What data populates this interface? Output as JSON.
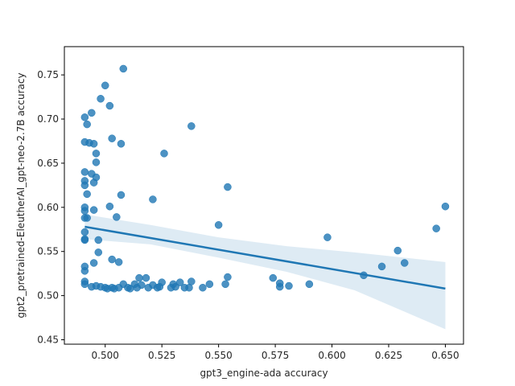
{
  "chart_data": {
    "type": "scatter",
    "xlabel": "gpt3_engine-ada accuracy",
    "ylabel": "gpt2_pretrained-EleutherAI_gpt-neo-2.7B accuracy",
    "xlim": [
      0.482,
      0.658
    ],
    "ylim": [
      0.445,
      0.782
    ],
    "xticks": [
      "0.500",
      "0.525",
      "0.550",
      "0.575",
      "0.600",
      "0.625",
      "0.650"
    ],
    "yticks": [
      "0.45",
      "0.50",
      "0.55",
      "0.60",
      "0.65",
      "0.70",
      "0.75"
    ],
    "grid": false,
    "point_color": "#1f77b4",
    "regression_line": {
      "x": [
        0.491,
        0.65
      ],
      "y": [
        0.578,
        0.508
      ]
    },
    "confidence_band": {
      "x": [
        0.491,
        0.52,
        0.55,
        0.58,
        0.61,
        0.65
      ],
      "upper": [
        0.592,
        0.58,
        0.566,
        0.556,
        0.549,
        0.538
      ],
      "lower": [
        0.564,
        0.558,
        0.543,
        0.527,
        0.506,
        0.462
      ]
    },
    "points": [
      {
        "x": 0.508,
        "y": 0.757
      },
      {
        "x": 0.5,
        "y": 0.738
      },
      {
        "x": 0.498,
        "y": 0.723
      },
      {
        "x": 0.502,
        "y": 0.715
      },
      {
        "x": 0.494,
        "y": 0.707
      },
      {
        "x": 0.491,
        "y": 0.702
      },
      {
        "x": 0.492,
        "y": 0.694
      },
      {
        "x": 0.538,
        "y": 0.692
      },
      {
        "x": 0.503,
        "y": 0.678
      },
      {
        "x": 0.491,
        "y": 0.674
      },
      {
        "x": 0.493,
        "y": 0.673
      },
      {
        "x": 0.495,
        "y": 0.672
      },
      {
        "x": 0.507,
        "y": 0.672
      },
      {
        "x": 0.526,
        "y": 0.661
      },
      {
        "x": 0.496,
        "y": 0.661
      },
      {
        "x": 0.496,
        "y": 0.651
      },
      {
        "x": 0.491,
        "y": 0.64
      },
      {
        "x": 0.494,
        "y": 0.638
      },
      {
        "x": 0.496,
        "y": 0.634
      },
      {
        "x": 0.491,
        "y": 0.63
      },
      {
        "x": 0.495,
        "y": 0.628
      },
      {
        "x": 0.491,
        "y": 0.625
      },
      {
        "x": 0.554,
        "y": 0.623
      },
      {
        "x": 0.492,
        "y": 0.615
      },
      {
        "x": 0.507,
        "y": 0.614
      },
      {
        "x": 0.521,
        "y": 0.609
      },
      {
        "x": 0.502,
        "y": 0.601
      },
      {
        "x": 0.491,
        "y": 0.6
      },
      {
        "x": 0.65,
        "y": 0.601
      },
      {
        "x": 0.491,
        "y": 0.596
      },
      {
        "x": 0.495,
        "y": 0.597
      },
      {
        "x": 0.505,
        "y": 0.589
      },
      {
        "x": 0.491,
        "y": 0.588
      },
      {
        "x": 0.492,
        "y": 0.588
      },
      {
        "x": 0.55,
        "y": 0.58
      },
      {
        "x": 0.646,
        "y": 0.576
      },
      {
        "x": 0.491,
        "y": 0.572
      },
      {
        "x": 0.598,
        "y": 0.566
      },
      {
        "x": 0.497,
        "y": 0.563
      },
      {
        "x": 0.491,
        "y": 0.564
      },
      {
        "x": 0.491,
        "y": 0.563
      },
      {
        "x": 0.629,
        "y": 0.551
      },
      {
        "x": 0.497,
        "y": 0.549
      },
      {
        "x": 0.503,
        "y": 0.541
      },
      {
        "x": 0.506,
        "y": 0.538
      },
      {
        "x": 0.495,
        "y": 0.537
      },
      {
        "x": 0.632,
        "y": 0.537
      },
      {
        "x": 0.491,
        "y": 0.533
      },
      {
        "x": 0.622,
        "y": 0.533
      },
      {
        "x": 0.491,
        "y": 0.528
      },
      {
        "x": 0.614,
        "y": 0.523
      },
      {
        "x": 0.554,
        "y": 0.521
      },
      {
        "x": 0.574,
        "y": 0.52
      },
      {
        "x": 0.515,
        "y": 0.52
      },
      {
        "x": 0.518,
        "y": 0.52
      },
      {
        "x": 0.538,
        "y": 0.516
      },
      {
        "x": 0.491,
        "y": 0.516
      },
      {
        "x": 0.525,
        "y": 0.515
      },
      {
        "x": 0.533,
        "y": 0.515
      },
      {
        "x": 0.553,
        "y": 0.513
      },
      {
        "x": 0.577,
        "y": 0.514
      },
      {
        "x": 0.59,
        "y": 0.513
      },
      {
        "x": 0.491,
        "y": 0.513
      },
      {
        "x": 0.546,
        "y": 0.513
      },
      {
        "x": 0.53,
        "y": 0.513
      },
      {
        "x": 0.508,
        "y": 0.513
      },
      {
        "x": 0.513,
        "y": 0.513
      },
      {
        "x": 0.516,
        "y": 0.512
      },
      {
        "x": 0.521,
        "y": 0.512
      },
      {
        "x": 0.496,
        "y": 0.511
      },
      {
        "x": 0.581,
        "y": 0.511
      },
      {
        "x": 0.577,
        "y": 0.51
      },
      {
        "x": 0.494,
        "y": 0.51
      },
      {
        "x": 0.498,
        "y": 0.51
      },
      {
        "x": 0.5,
        "y": 0.509
      },
      {
        "x": 0.503,
        "y": 0.509
      },
      {
        "x": 0.506,
        "y": 0.509
      },
      {
        "x": 0.51,
        "y": 0.509
      },
      {
        "x": 0.514,
        "y": 0.509
      },
      {
        "x": 0.519,
        "y": 0.509
      },
      {
        "x": 0.523,
        "y": 0.509
      },
      {
        "x": 0.529,
        "y": 0.509
      },
      {
        "x": 0.535,
        "y": 0.509
      },
      {
        "x": 0.537,
        "y": 0.509
      },
      {
        "x": 0.543,
        "y": 0.509
      },
      {
        "x": 0.501,
        "y": 0.508
      },
      {
        "x": 0.504,
        "y": 0.508
      },
      {
        "x": 0.511,
        "y": 0.508
      },
      {
        "x": 0.531,
        "y": 0.51
      },
      {
        "x": 0.524,
        "y": 0.51
      }
    ]
  }
}
